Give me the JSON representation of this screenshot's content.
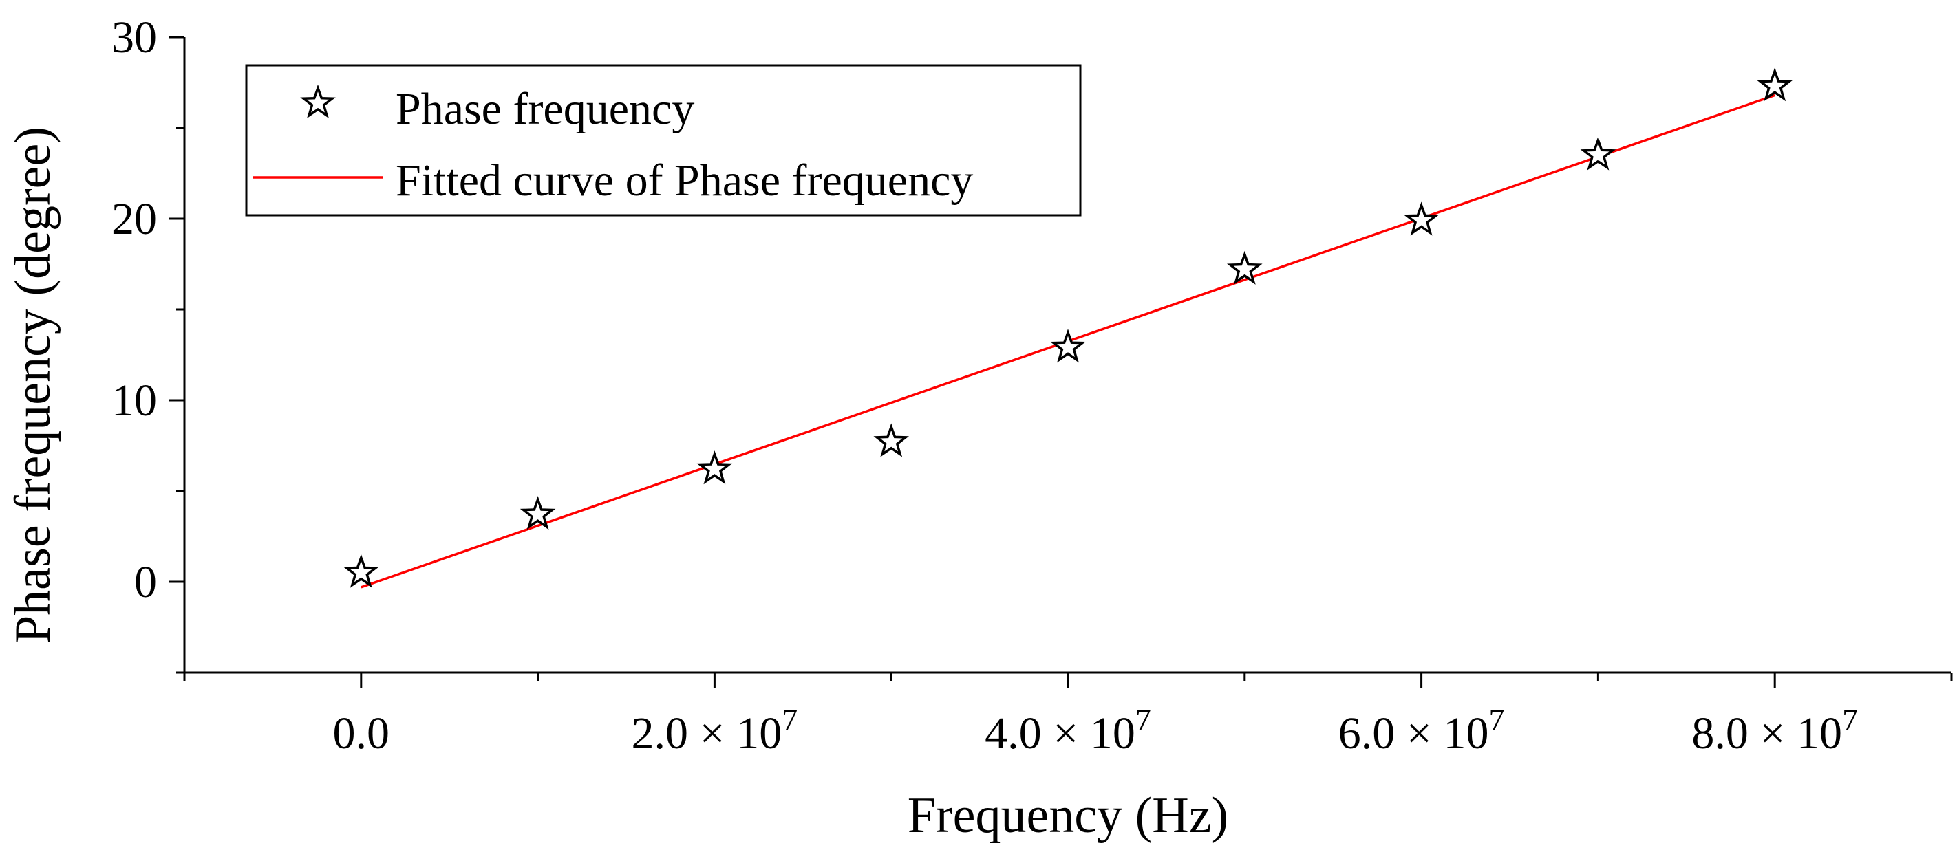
{
  "chart_data": {
    "type": "scatter",
    "title": "",
    "xlabel": "Frequency (Hz)",
    "ylabel": "Phase frequency (degree)",
    "xlim": [
      -10000000,
      90000000
    ],
    "ylim": [
      -5,
      30
    ],
    "x_ticks": [
      {
        "value": 0,
        "mantissa": "0.0",
        "exponent": ""
      },
      {
        "value": 20000000,
        "mantissa": "2.0 × 10",
        "exponent": "7"
      },
      {
        "value": 40000000,
        "mantissa": "4.0 × 10",
        "exponent": "7"
      },
      {
        "value": 60000000,
        "mantissa": "6.0 × 10",
        "exponent": "7"
      },
      {
        "value": 80000000,
        "mantissa": "8.0 × 10",
        "exponent": "7"
      }
    ],
    "x_minor_ticks": [
      -10000000,
      10000000,
      30000000,
      50000000,
      70000000,
      90000000
    ],
    "y_ticks": [
      {
        "value": 0,
        "label": "0"
      },
      {
        "value": 10,
        "label": "10"
      },
      {
        "value": 20,
        "label": "20"
      },
      {
        "value": 30,
        "label": "30"
      }
    ],
    "y_minor_ticks": [
      -5,
      5,
      15,
      25
    ],
    "series": [
      {
        "name": "Phase frequency",
        "kind": "scatter",
        "marker": "star",
        "color": "#000000",
        "x": [
          0,
          10000000,
          20000000,
          30000000,
          40000000,
          50000000,
          60000000,
          70000000,
          80000000
        ],
        "y": [
          0.5,
          3.7,
          6.2,
          7.7,
          12.9,
          17.2,
          19.9,
          23.5,
          27.3
        ]
      },
      {
        "name": "Fitted curve of Phase frequency",
        "kind": "line",
        "color": "#ff0000",
        "x": [
          0,
          80000000
        ],
        "y": [
          -0.3,
          26.8
        ]
      }
    ],
    "legend": {
      "position": "top-left",
      "entries": [
        "Phase frequency",
        "Fitted curve of Phase frequency"
      ]
    },
    "grid": false
  }
}
